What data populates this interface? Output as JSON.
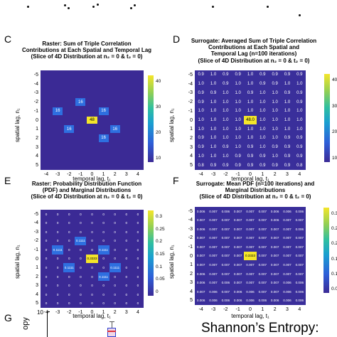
{
  "panels": {
    "C": {
      "letter": "C",
      "title": [
        "Raster: Sum of Triple Correlation",
        "Contributions at Each Spatial and Temporal Lag",
        "(Slice of 4D Distribution at n₂ = 0 & t₂ = 0)"
      ],
      "ylabel": "spatial lag, n₁",
      "xlabel": "temporal lag, t₁",
      "yticks": [
        "-5",
        "-4",
        "-3",
        "-2",
        "-1",
        "0",
        "1",
        "2",
        "3",
        "4",
        "5"
      ],
      "xticks": [
        "-4",
        "-3",
        "-2",
        "-1",
        "0",
        "1",
        "2",
        "3",
        "4"
      ],
      "cbar_ticks": [
        "40",
        "30",
        "20",
        "10"
      ],
      "cells": [
        {
          "row": 3,
          "col": 3,
          "text": "16"
        },
        {
          "row": 4,
          "col": 1,
          "text": "16"
        },
        {
          "row": 4,
          "col": 5,
          "text": "16"
        },
        {
          "row": 5,
          "col": 4,
          "text": "48"
        },
        {
          "row": 6,
          "col": 2,
          "text": "16"
        },
        {
          "row": 6,
          "col": 6,
          "text": "16"
        },
        {
          "row": 7,
          "col": 5,
          "text": "16"
        }
      ]
    },
    "D": {
      "letter": "D",
      "title": [
        "Surrogate: Averaged Sum of Triple Correlation",
        "Contributions at Each Spatial and",
        "Temporal Lag (n=100 iterations)",
        "(Slice of 4D Distribution at n₂ = 0 & t₂ = 0)"
      ],
      "ylabel": "spatial lag, n₁",
      "xlabel": "temporal lag, t₁",
      "yticks": [
        "-5",
        "-4",
        "-3",
        "-2",
        "-1",
        "0",
        "1",
        "2",
        "3",
        "4",
        "5"
      ],
      "xticks": [
        "-4",
        "-3",
        "-2",
        "-1",
        "0",
        "1",
        "2",
        "3",
        "4"
      ],
      "cbar_ticks": [
        "40",
        "30",
        "20",
        "10"
      ],
      "grid": [
        [
          "0.9",
          "1.0",
          "0.9",
          "0.9",
          "1.0",
          "0.9",
          "0.9",
          "0.9",
          "0.9"
        ],
        [
          "1.0",
          "1.0",
          "0.9",
          "1.0",
          "1.0",
          "0.9",
          "0.9",
          "1.0",
          "1.0"
        ],
        [
          "0.9",
          "0.9",
          "1.0",
          "1.0",
          "0.9",
          "1.0",
          "1.0",
          "0.9",
          "0.9"
        ],
        [
          "0.9",
          "1.0",
          "1.0",
          "1.0",
          "1.0",
          "1.0",
          "1.0",
          "1.0",
          "0.9"
        ],
        [
          "1.0",
          "1.0",
          "1.0",
          "1.0",
          "1.0",
          "1.0",
          "1.0",
          "1.0",
          "1.0"
        ],
        [
          "1.0",
          "1.0",
          "1.0",
          "1.0",
          "48.0",
          "1.0",
          "1.0",
          "1.0",
          "1.0"
        ],
        [
          "1.0",
          "1.0",
          "1.0",
          "1.0",
          "1.0",
          "1.0",
          "1.0",
          "1.0",
          "1.0"
        ],
        [
          "0.9",
          "1.0",
          "1.0",
          "1.0",
          "1.0",
          "1.0",
          "1.0",
          "0.9",
          "0.9"
        ],
        [
          "0.9",
          "1.0",
          "0.9",
          "1.0",
          "0.9",
          "1.0",
          "0.9",
          "0.9",
          "0.9"
        ],
        [
          "1.0",
          "1.0",
          "1.0",
          "0.9",
          "0.9",
          "0.9",
          "1.0",
          "0.9",
          "0.9"
        ],
        [
          "0.8",
          "0.9",
          "0.9",
          "0.9",
          "0.9",
          "0.9",
          "0.9",
          "0.9",
          "0.8"
        ]
      ]
    },
    "E": {
      "letter": "E",
      "title": [
        "Raster: Probability Distribution Function",
        "(PDF) and Marginal Distributions",
        "(Slice of 4D Distribution at n₂ = 0 & t₂ = 0)"
      ],
      "ylabel": "spatial lag, n₁",
      "xlabel": "temporal lag, t₁",
      "yticks": [
        "-5",
        "-4",
        "-3",
        "-2",
        "-1",
        "0",
        "1",
        "2",
        "3",
        "4",
        "5"
      ],
      "xticks": [
        "-4",
        "-3",
        "-2",
        "-1",
        "0",
        "1",
        "2",
        "3",
        "4"
      ],
      "cbar_ticks": [
        "0.3",
        "0.25",
        "0.2",
        "0.15",
        "0.1",
        "0.05",
        "0"
      ],
      "cells": [
        {
          "row": 3,
          "col": 3,
          "text": "0.1111"
        },
        {
          "row": 4,
          "col": 1,
          "text": "0.1111"
        },
        {
          "row": 4,
          "col": 5,
          "text": "0.1111"
        },
        {
          "row": 5,
          "col": 4,
          "text": "0.3333"
        },
        {
          "row": 6,
          "col": 2,
          "text": "0.1111"
        },
        {
          "row": 6,
          "col": 6,
          "text": "0.1111"
        },
        {
          "row": 7,
          "col": 5,
          "text": "0.1111"
        }
      ],
      "zero_text": "0"
    },
    "F": {
      "letter": "F",
      "title": [
        "Surrogate: Mean PDF (n=100 iterations) and",
        "Marginal Distributions",
        "(Slice of 4D Distribution at n₂ = 0 & t₂ = 0)"
      ],
      "ylabel": "spatial lag, n₁",
      "xlabel": "temporal lag, t₁",
      "yticks": [
        "-5",
        "-4",
        "-3",
        "-2",
        "-1",
        "0",
        "1",
        "2",
        "3",
        "4",
        "5"
      ],
      "xticks": [
        "-4",
        "-3",
        "-2",
        "-1",
        "0",
        "1",
        "2",
        "3",
        "4"
      ],
      "cbar_ticks": [
        "0.3",
        "0.25",
        "0.2",
        "0.15",
        "0.1",
        "0.05"
      ],
      "grid": [
        [
          "0.006",
          "0.007",
          "0.006",
          "0.007",
          "0.007",
          "0.007",
          "0.006",
          "0.006",
          "0.006"
        ],
        [
          "0.007",
          "0.007",
          "0.007",
          "0.007",
          "0.007",
          "0.007",
          "0.006",
          "0.007",
          "0.007"
        ],
        [
          "0.006",
          "0.007",
          "0.007",
          "0.007",
          "0.007",
          "0.007",
          "0.007",
          "0.007",
          "0.006"
        ],
        [
          "0.007",
          "0.007",
          "0.007",
          "0.007",
          "0.007",
          "0.007",
          "0.007",
          "0.007",
          "0.007"
        ],
        [
          "0.007",
          "0.007",
          "0.007",
          "0.007",
          "0.007",
          "0.007",
          "0.007",
          "0.007",
          "0.007"
        ],
        [
          "0.007",
          "0.007",
          "0.007",
          "0.007",
          "0.3333",
          "0.007",
          "0.007",
          "0.007",
          "0.007"
        ],
        [
          "0.007",
          "0.007",
          "0.007",
          "0.007",
          "0.007",
          "0.007",
          "0.007",
          "0.007",
          "0.007"
        ],
        [
          "0.006",
          "0.007",
          "0.007",
          "0.007",
          "0.007",
          "0.007",
          "0.007",
          "0.007",
          "0.007"
        ],
        [
          "0.006",
          "0.007",
          "0.006",
          "0.007",
          "0.007",
          "0.007",
          "0.007",
          "0.006",
          "0.006"
        ],
        [
          "0.007",
          "0.006",
          "0.007",
          "0.006",
          "0.006",
          "0.007",
          "0.007",
          "0.006",
          "0.006"
        ],
        [
          "0.006",
          "0.006",
          "0.006",
          "0.006",
          "0.006",
          "0.006",
          "0.006",
          "0.006",
          "0.006"
        ]
      ]
    },
    "G": {
      "letter": "G",
      "ytick_top": "10",
      "ylabel_fragment": "opy",
      "shannon": "Shannon’s Entropy:"
    }
  }
}
